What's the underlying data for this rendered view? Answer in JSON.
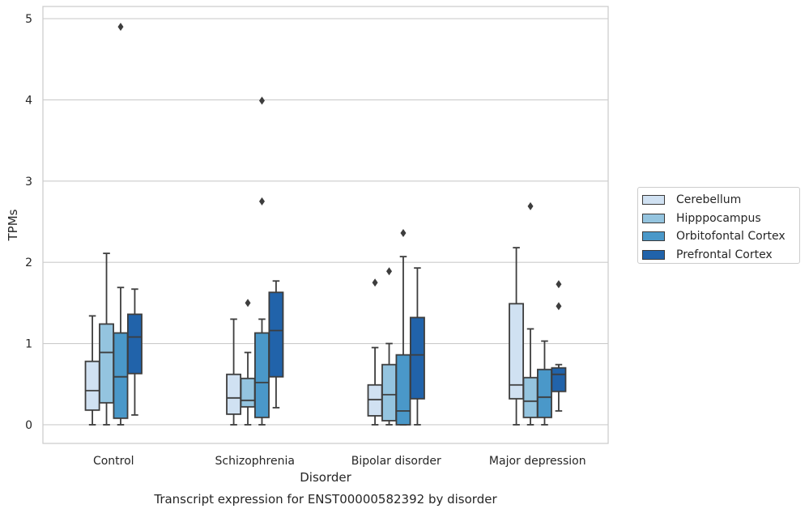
{
  "chart_data": {
    "type": "box",
    "title": "Transcript expression for ENST00000582392 by disorder",
    "xlabel": "Disorder",
    "ylabel": "TPMs",
    "ylim": [
      -0.23,
      5.15
    ],
    "yticks": [
      0,
      1,
      2,
      3,
      4,
      5
    ],
    "grid": true,
    "legend_position": "right",
    "categories": [
      "Control",
      "Schizophrenia",
      "Bipolar disorder",
      "Major depression"
    ],
    "series": [
      {
        "name": "Cerebellum",
        "color": "#d0e1f2",
        "boxes": [
          {
            "whislo": 0.0,
            "q1": 0.18,
            "med": 0.42,
            "q3": 0.78,
            "whishi": 1.34,
            "fliers": []
          },
          {
            "whislo": 0.0,
            "q1": 0.13,
            "med": 0.33,
            "q3": 0.62,
            "whishi": 1.3,
            "fliers": []
          },
          {
            "whislo": 0.0,
            "q1": 0.11,
            "med": 0.31,
            "q3": 0.49,
            "whishi": 0.95,
            "fliers": [
              1.75
            ]
          },
          {
            "whislo": 0.0,
            "q1": 0.32,
            "med": 0.49,
            "q3": 1.49,
            "whishi": 2.18,
            "fliers": []
          }
        ]
      },
      {
        "name": "Hipppocampus",
        "color": "#94c4df",
        "boxes": [
          {
            "whislo": 0.0,
            "q1": 0.27,
            "med": 0.89,
            "q3": 1.24,
            "whishi": 2.11,
            "fliers": []
          },
          {
            "whislo": 0.0,
            "q1": 0.22,
            "med": 0.3,
            "q3": 0.57,
            "whishi": 0.89,
            "fliers": [
              1.5
            ]
          },
          {
            "whislo": 0.0,
            "q1": 0.05,
            "med": 0.37,
            "q3": 0.74,
            "whishi": 1.0,
            "fliers": [
              1.89
            ]
          },
          {
            "whislo": 0.0,
            "q1": 0.09,
            "med": 0.29,
            "q3": 0.58,
            "whishi": 1.18,
            "fliers": [
              2.69
            ]
          }
        ]
      },
      {
        "name": "Orbitofontal Cortex",
        "color": "#4a98c9",
        "boxes": [
          {
            "whislo": 0.0,
            "q1": 0.08,
            "med": 0.59,
            "q3": 1.13,
            "whishi": 1.69,
            "fliers": [
              4.9
            ]
          },
          {
            "whislo": 0.0,
            "q1": 0.09,
            "med": 0.52,
            "q3": 1.13,
            "whishi": 1.3,
            "fliers": [
              2.75,
              3.99
            ]
          },
          {
            "whislo": 0.0,
            "q1": 0.0,
            "med": 0.17,
            "q3": 0.86,
            "whishi": 2.07,
            "fliers": [
              2.36
            ]
          },
          {
            "whislo": 0.0,
            "q1": 0.09,
            "med": 0.34,
            "q3": 0.68,
            "whishi": 1.03,
            "fliers": []
          }
        ]
      },
      {
        "name": "Prefrontal Cortex",
        "color": "#2163aa",
        "boxes": [
          {
            "whislo": 0.12,
            "q1": 0.63,
            "med": 1.08,
            "q3": 1.36,
            "whishi": 1.67,
            "fliers": []
          },
          {
            "whislo": 0.21,
            "q1": 0.59,
            "med": 1.16,
            "q3": 1.63,
            "whishi": 1.77,
            "fliers": []
          },
          {
            "whislo": 0.0,
            "q1": 0.32,
            "med": 0.86,
            "q3": 1.32,
            "whishi": 1.93,
            "fliers": []
          },
          {
            "whislo": 0.17,
            "q1": 0.41,
            "med": 0.62,
            "q3": 0.7,
            "whishi": 0.74,
            "fliers": [
              1.46,
              1.73
            ]
          }
        ]
      }
    ]
  }
}
